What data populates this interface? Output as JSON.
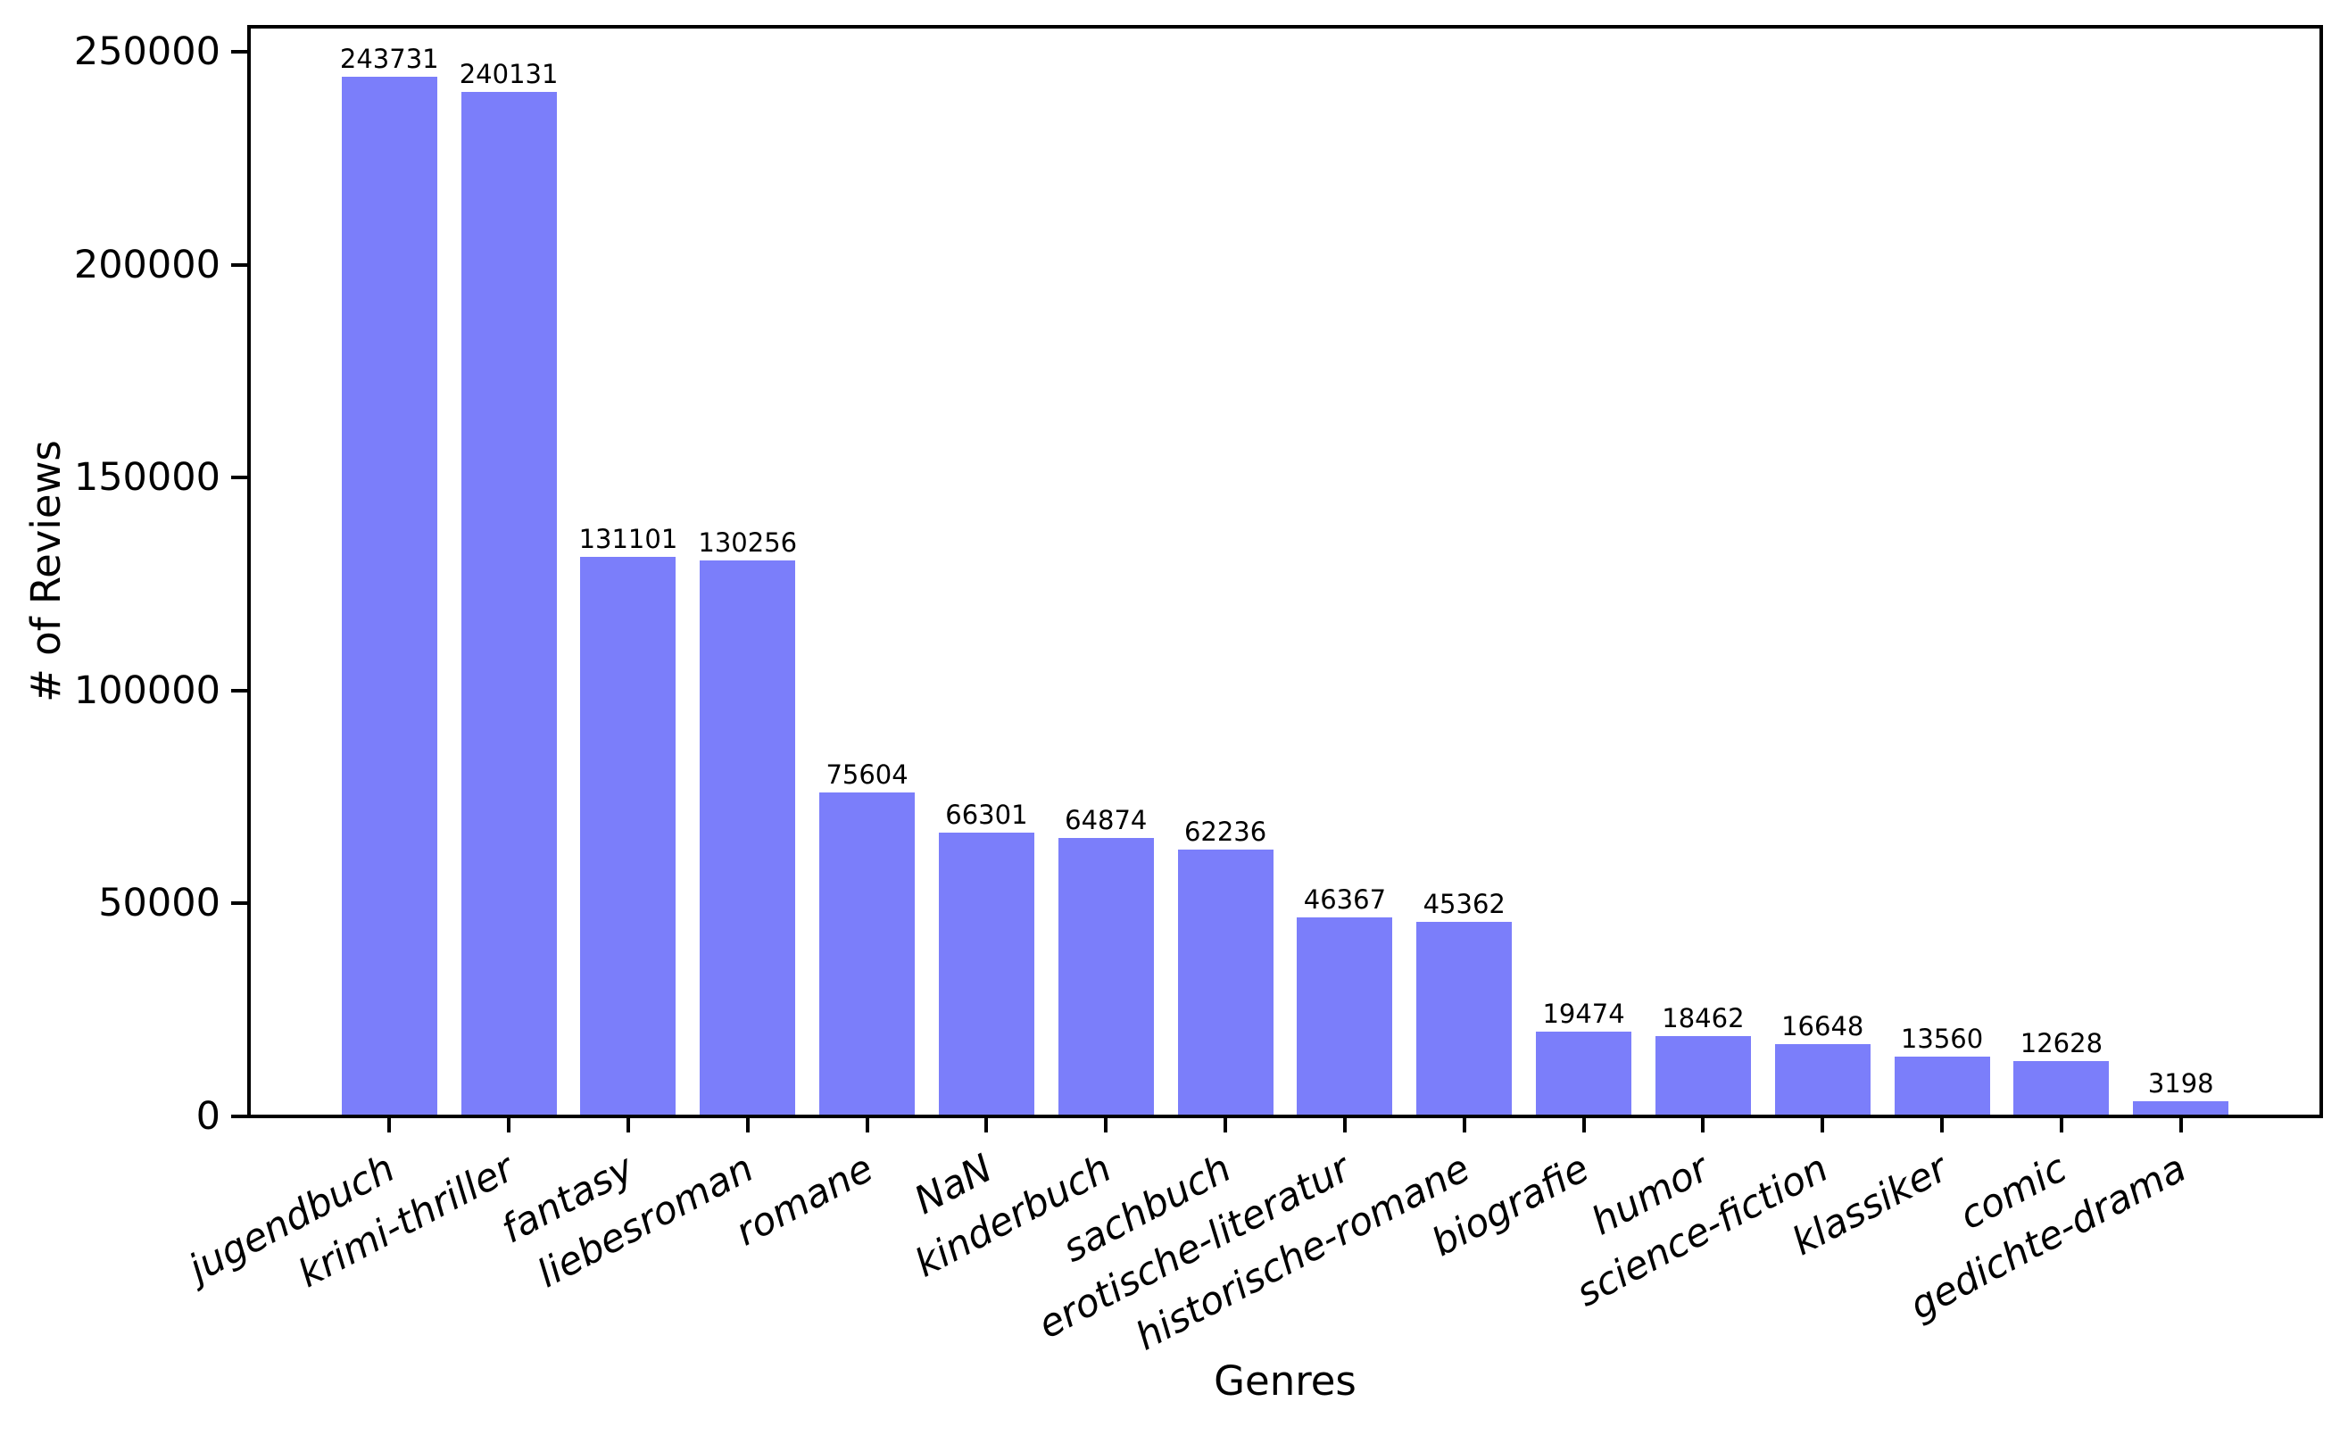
{
  "chart_data": {
    "type": "bar",
    "title": "",
    "xlabel": "Genres",
    "ylabel": "# of Reviews",
    "categories": [
      "jugendbuch",
      "krimi-thriller",
      "fantasy",
      "liebesroman",
      "romane",
      "NaN",
      "kinderbuch",
      "sachbuch",
      "erotische-literatur",
      "historische-romane",
      "biografie",
      "humor",
      "science-fiction",
      "klassiker",
      "comic",
      "gedichte-drama"
    ],
    "values": [
      243731,
      240131,
      131101,
      130256,
      75604,
      66301,
      64874,
      62236,
      46367,
      45362,
      19474,
      18462,
      16648,
      13560,
      12628,
      3198
    ],
    "value_labels": [
      "243731",
      "240131",
      "131101",
      "130256",
      "75604",
      "66301",
      "64874",
      "62236",
      "46367",
      "45362",
      "19474",
      "18462",
      "16648",
      "13560",
      "12628",
      "3198"
    ],
    "yticks": [
      0,
      50000,
      100000,
      150000,
      200000,
      250000
    ],
    "ytick_labels": [
      "0",
      "50000",
      "100000",
      "150000",
      "200000",
      "250000"
    ],
    "ylim": [
      0,
      255918
    ],
    "xlim": [
      -1.19,
      16.19
    ],
    "bar_width": 0.8,
    "bar_color": "#7b7efa",
    "axis_color": "#000000",
    "background_color": "#ffffff",
    "grid": false,
    "legend": null,
    "xtick_rotation_deg": 28,
    "xtick_fontstyle": "italic"
  }
}
